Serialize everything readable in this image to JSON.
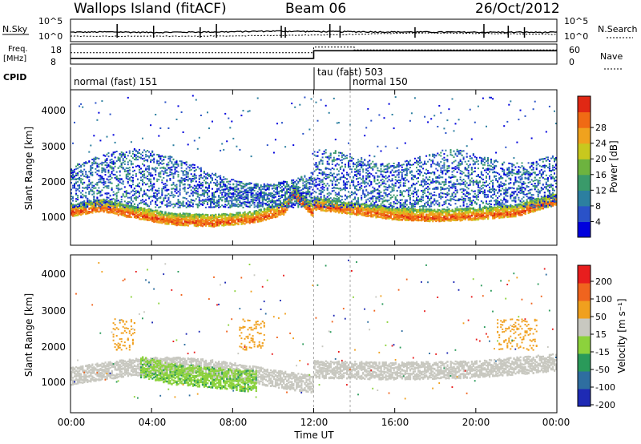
{
  "header": {
    "title": "Wallops Island (fitACF)",
    "beam": "Beam 06",
    "date": "26/Oct/2012"
  },
  "panels": {
    "nsky": {
      "left_label": "N.Sky",
      "ticks_left": [
        "10^5",
        "10^0"
      ],
      "ticks_right": [
        "10^5",
        "10^0"
      ],
      "right_label": "N.Search"
    },
    "freq": {
      "left_label_line1": "Freq.",
      "left_label_line2": "[MHz]",
      "ticks_left": [
        "18",
        "8"
      ],
      "ticks_right": [
        "60",
        "0"
      ],
      "right_label": "Nave"
    },
    "cpid": {
      "left_label": "CPID",
      "modes": [
        "normal (fast) 151",
        "tau (fast) 503",
        "normal 150"
      ]
    }
  },
  "axes": {
    "xlabel": "Time UT",
    "x_ticks": [
      "00:00",
      "04:00",
      "08:00",
      "12:00",
      "16:00",
      "20:00",
      "00:00"
    ],
    "ylabel": "Slant Range [km]",
    "y_ticks": [
      "1000",
      "2000",
      "3000",
      "4000"
    ]
  },
  "colorbars": {
    "power": {
      "label": "Power [dB]",
      "ticks": [
        "4",
        "8",
        "12",
        "16",
        "20",
        "24",
        "28"
      ],
      "colors": [
        "#0000dd",
        "#2a52c8",
        "#2c7fa0",
        "#3a9a6a",
        "#6db33f",
        "#c8c81e",
        "#f0a21e",
        "#f06a14",
        "#e02814"
      ]
    },
    "velocity": {
      "label": "Velocity [m s⁻¹]",
      "ticks": [
        "200",
        "100",
        "50",
        "15",
        "-15",
        "-50",
        "-100",
        "-200"
      ],
      "colors": [
        "#1e2ab4",
        "#2e6ea0",
        "#2a9a5a",
        "#8cd23c",
        "#c8c8c0",
        "#f0a01e",
        "#f0641e",
        "#e81e1e"
      ]
    }
  },
  "chart_data": [
    {
      "type": "line",
      "title": "N.Sky / N.Search",
      "x_range_hours": [
        0,
        24
      ],
      "ylim": [
        "10^0",
        "10^5"
      ],
      "series": [
        {
          "name": "N.Sky",
          "x": [
            0,
            2,
            4,
            6,
            8,
            10,
            12,
            14,
            16,
            18,
            20,
            22,
            24
          ],
          "values": [
            100,
            120,
            90,
            110,
            130,
            200,
            150,
            140,
            120,
            110,
            100,
            100,
            90
          ]
        },
        {
          "name": "N.Search",
          "x": [
            0,
            2,
            4,
            6,
            8,
            10,
            12,
            14,
            16,
            18,
            20,
            22,
            24
          ],
          "values": [
            10,
            10,
            10,
            10,
            12,
            15,
            20,
            30,
            60,
            70,
            60,
            40,
            30
          ]
        }
      ]
    },
    {
      "type": "line",
      "title": "Frequency / Nave",
      "x_range_hours": [
        0,
        24
      ],
      "series": [
        {
          "name": "Freq. [MHz]",
          "x": [
            0,
            12,
            12,
            24
          ],
          "values": [
            10.5,
            10.5,
            15,
            15
          ]
        },
        {
          "name": "Nave",
          "x": [
            0,
            12,
            12,
            14,
            14,
            24
          ],
          "values": [
            35,
            35,
            55,
            55,
            45,
            45
          ]
        }
      ]
    },
    {
      "type": "heatmap",
      "title": "Power [dB]",
      "x_range_hours": [
        0,
        24
      ],
      "ylim": [
        0,
        4500
      ],
      "features": [
        {
          "x": [
            0.0,
            1.5,
            3.0,
            5.0,
            7.0,
            9.0,
            10.5,
            11.0,
            12.0
          ],
          "values": [
            950,
            1100,
            900,
            700,
            650,
            750,
            1000,
            1500,
            900
          ]
        },
        {
          "x": [
            12.0,
            14.0,
            16.0,
            18.0,
            20.0,
            22.0,
            24.0
          ],
          "values": [
            1150,
            1000,
            850,
            800,
            850,
            950,
            1300
          ]
        }
      ]
    },
    {
      "type": "heatmap",
      "title": "Velocity [m s⁻¹]",
      "x_range_hours": [
        0,
        24
      ],
      "ylim": [
        0,
        4500
      ],
      "features": [
        {
          "x": [
            3.5,
            5.0,
            7.0,
            8.5
          ],
          "values": [
            1200,
            1000,
            900,
            800
          ]
        },
        {
          "x": [
            12.0,
            16.0,
            20.0,
            24.0
          ],
          "values": [
            1200,
            1150,
            1200,
            1400
          ]
        }
      ]
    }
  ]
}
